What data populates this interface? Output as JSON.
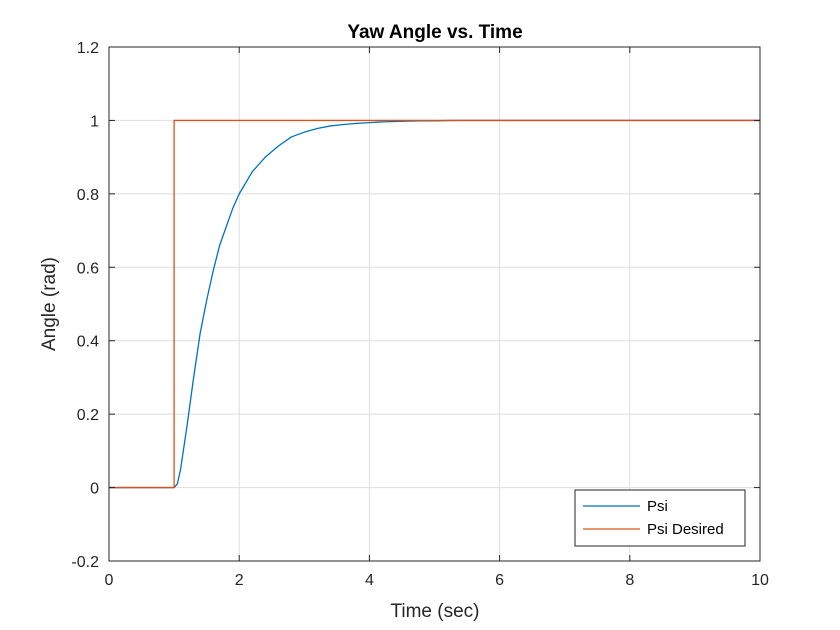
{
  "chart_data": {
    "type": "line",
    "title": "Yaw Angle vs. Time",
    "xlabel": "Time (sec)",
    "ylabel": "Angle (rad)",
    "xlim": [
      0,
      10
    ],
    "ylim": [
      -0.2,
      1.2
    ],
    "xticks": [
      0,
      2,
      4,
      6,
      8,
      10
    ],
    "yticks": [
      -0.2,
      0,
      0.2,
      0.4,
      0.6,
      0.8,
      1,
      1.2
    ],
    "xtick_labels": [
      "0",
      "2",
      "4",
      "6",
      "8",
      "10"
    ],
    "ytick_labels": [
      "-0.2",
      "0",
      "0.2",
      "0.4",
      "0.6",
      "0.8",
      "1",
      "1.2"
    ],
    "grid": true,
    "legend_position": "bottom-right",
    "series": [
      {
        "name": "Psi",
        "color": "#0072BD",
        "x": [
          0,
          1.0,
          1.05,
          1.1,
          1.2,
          1.3,
          1.4,
          1.5,
          1.6,
          1.7,
          1.8,
          1.9,
          2.0,
          2.2,
          2.4,
          2.6,
          2.8,
          3.0,
          3.2,
          3.4,
          3.6,
          3.8,
          4.0,
          4.2,
          4.4,
          4.6,
          4.8,
          5.0,
          5.3,
          6.0,
          8.0,
          10.0
        ],
        "y": [
          0,
          0,
          0.01,
          0.05,
          0.17,
          0.3,
          0.42,
          0.51,
          0.59,
          0.66,
          0.71,
          0.76,
          0.8,
          0.86,
          0.9,
          0.93,
          0.955,
          0.968,
          0.978,
          0.985,
          0.989,
          0.992,
          0.994,
          0.996,
          0.997,
          0.998,
          0.999,
          0.999,
          1.0,
          1.0,
          1.0,
          1.0
        ]
      },
      {
        "name": "Psi Desired",
        "color": "#D95319",
        "x": [
          0,
          1.0,
          1.0,
          10.0
        ],
        "y": [
          0,
          0,
          1,
          1
        ]
      }
    ]
  }
}
